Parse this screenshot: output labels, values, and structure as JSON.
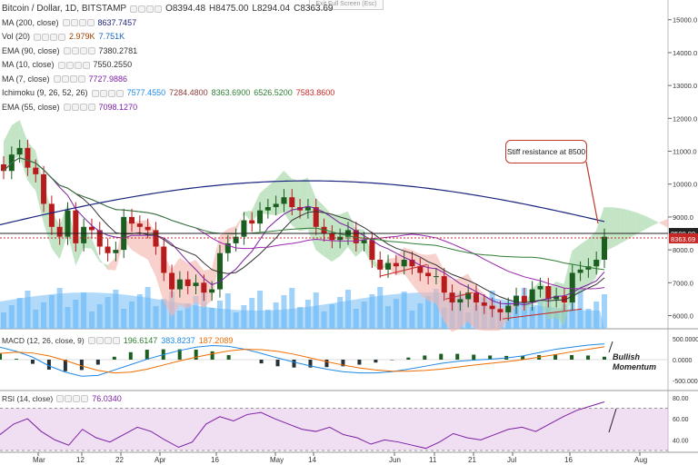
{
  "header": {
    "symbol": "Bitcoin / Dollar, 1D, BITSTAMP",
    "open": "O8394.48",
    "high": "H8475.00",
    "low": "L8294.04",
    "close": "C8363.69",
    "exit_fullscreen": "Exit Full Screen (Esc)"
  },
  "indicators": [
    {
      "label": "MA (200, close)",
      "values": [
        "8637.7457"
      ],
      "colors": [
        "#1a237e"
      ]
    },
    {
      "label": "Vol (20)",
      "values": [
        "2.979K",
        "7.751K"
      ],
      "colors": [
        "#a04000",
        "#1565c0"
      ]
    },
    {
      "label": "EMA (90, close)",
      "values": [
        "7380.2781"
      ],
      "colors": [
        "#333333"
      ]
    },
    {
      "label": "MA (10, close)",
      "values": [
        "7550.2550"
      ],
      "colors": [
        "#333333"
      ]
    },
    {
      "label": "MA (7, close)",
      "values": [
        "7727.9886"
      ],
      "colors": [
        "#7b1fa2"
      ]
    },
    {
      "label": "Ichimoku (9, 26, 52, 26)",
      "values": [
        "7577.4550",
        "7284.4800",
        "8363.6900",
        "6526.5200",
        "7583.8600"
      ],
      "colors": [
        "#1e88e5",
        "#8d3a3a",
        "#2e7d32",
        "#2e7d32",
        "#c62828"
      ]
    },
    {
      "label": "EMA (55, close)",
      "values": [
        "7098.1270"
      ],
      "colors": [
        "#7b1fa2"
      ]
    }
  ],
  "annotations": {
    "resistance": "Stiff resistance at 8500",
    "momentum": "Bullish Momentum"
  },
  "macd_label": {
    "label": "MACD (12, 26, close, 9)",
    "values": [
      "196.6147",
      "383.8237",
      "187.2089"
    ],
    "colors": [
      "#2e7d32",
      "#1e88e5",
      "#ef6c00"
    ]
  },
  "rsi_label": {
    "label": "RSI (14, close)",
    "values": [
      "76.0340"
    ],
    "colors": [
      "#7b1fa2"
    ]
  },
  "colors": {
    "up": "#1b5e20",
    "down": "#b71c1c",
    "ma200": "#1a237e",
    "cloud_green": "#a5d6a7",
    "cloud_red": "#f5b7b1",
    "volume": "#90caf9",
    "macd": "#1e88e5",
    "signal": "#ef6c00",
    "rsi": "#7b1fa2",
    "rsi_band": "#e1bee7"
  },
  "chart_data": [
    {
      "type": "candlestick",
      "title": "Bitcoin / Dollar, 1D, BITSTAMP",
      "x_ticks": [
        "Mar",
        "12",
        "22",
        "Apr",
        "16",
        "May",
        "14",
        "Jun",
        "11",
        "21",
        "Jul",
        "16",
        "Aug"
      ],
      "y_ticks": [
        6000,
        7000,
        8000,
        9000,
        10000,
        11000,
        12000,
        13000,
        14000,
        15000
      ],
      "ylim": [
        5600,
        15600
      ],
      "price_labels": {
        "resistance": "8500.00",
        "last": "8363.69"
      },
      "series": [
        {
          "name": "Close",
          "values": [
            10400,
            10900,
            11100,
            10500,
            10300,
            9400,
            8700,
            8400,
            9200,
            8200,
            8700,
            8600,
            8100,
            7900,
            8000,
            9000,
            8800,
            8700,
            8600,
            8100,
            7300,
            6800,
            7100,
            6900,
            7000,
            6700,
            6800,
            7900,
            8200,
            8400,
            8900,
            8800,
            9200,
            9300,
            9400,
            9600,
            9300,
            9200,
            9300,
            8700,
            8500,
            8300,
            8400,
            8600,
            8200,
            8300,
            7700,
            7400,
            7600,
            7500,
            7700,
            7500,
            7300,
            7200,
            7200,
            6700,
            6400,
            6500,
            6700,
            6400,
            6300,
            6200,
            6100,
            6300,
            6600,
            6400,
            6800,
            6900,
            6500,
            6600,
            6400,
            7300,
            7400,
            7500,
            7700,
            8400
          ]
        }
      ]
    },
    {
      "type": "macd",
      "ylim": [
        -700,
        700
      ],
      "y_ticks": [
        -500,
        0,
        500
      ],
      "series": [
        {
          "name": "MACD",
          "values": [
            300,
            200,
            60,
            -150,
            -300,
            -400,
            -380,
            -250,
            -120,
            10,
            120,
            220,
            300,
            340,
            320,
            250,
            150,
            40,
            -60,
            -150,
            -230,
            -290,
            -320,
            -320,
            -290,
            -230,
            -160,
            -90,
            -40,
            -10,
            10,
            40,
            90,
            170,
            250,
            300,
            350,
            380
          ]
        },
        {
          "name": "Signal",
          "values": [
            150,
            180,
            160,
            90,
            -20,
            -150,
            -260,
            -320,
            -300,
            -230,
            -130,
            -30,
            60,
            140,
            210,
            250,
            240,
            200,
            130,
            40,
            -50,
            -130,
            -200,
            -250,
            -280,
            -280,
            -260,
            -230,
            -180,
            -130,
            -90,
            -50,
            0,
            60,
            120,
            190,
            250,
            310
          ]
        }
      ]
    },
    {
      "type": "line",
      "ylim": [
        30,
        85
      ],
      "y_ticks": [
        40,
        60,
        80
      ],
      "series": [
        {
          "name": "RSI",
          "values": [
            45,
            55,
            60,
            48,
            40,
            35,
            50,
            42,
            38,
            45,
            52,
            48,
            40,
            33,
            38,
            55,
            62,
            58,
            64,
            66,
            60,
            55,
            50,
            48,
            52,
            45,
            42,
            36,
            40,
            38,
            35,
            32,
            38,
            46,
            42,
            40,
            45,
            50,
            52,
            48,
            55,
            62,
            68,
            72,
            76
          ]
        }
      ]
    }
  ]
}
